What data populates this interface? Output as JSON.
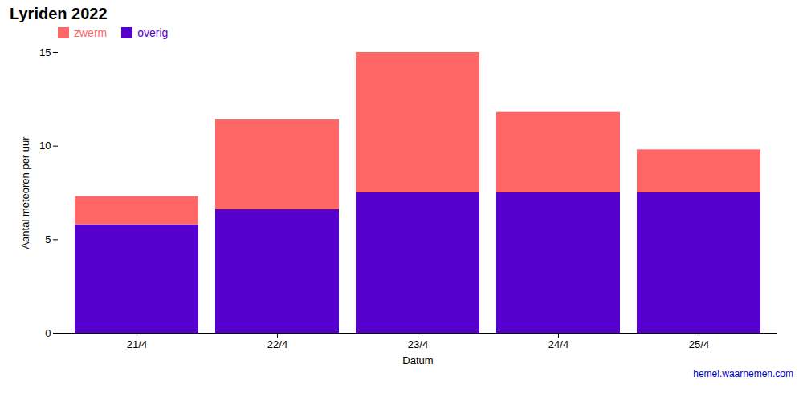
{
  "chart_data": {
    "type": "bar",
    "stacked": true,
    "title": "Lyriden 2022",
    "x_label": "Datum",
    "y_label": "Aantal meteoren per uur",
    "categories": [
      "21/4",
      "22/4",
      "23/4",
      "24/4",
      "25/4"
    ],
    "series": [
      {
        "name": "overig",
        "color": "#5500CC",
        "values": [
          5.8,
          6.6,
          7.5,
          7.5,
          7.5
        ]
      },
      {
        "name": "zwerm",
        "color": "#FF6666",
        "values": [
          1.5,
          4.8,
          7.5,
          4.3,
          2.3
        ]
      }
    ],
    "ylim": [
      0,
      15
    ],
    "yticks": [
      0,
      5,
      10,
      15
    ],
    "grid": false,
    "legend": "upper left",
    "annotations": [
      {
        "text": "hemel.waarnemen.com",
        "color": "#0000CC"
      }
    ]
  }
}
